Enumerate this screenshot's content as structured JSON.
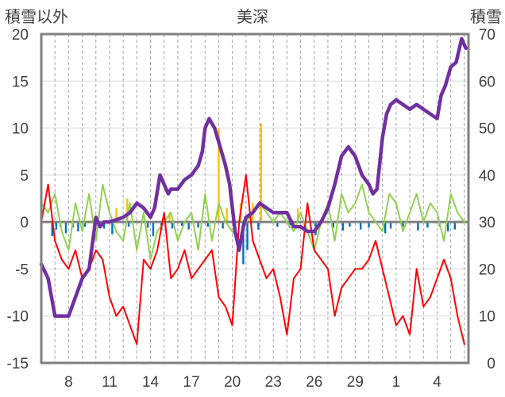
{
  "chart_data": {
    "type": "line",
    "title": "美深",
    "left_axis_label": "積雪以外",
    "right_axis_label": "積雪",
    "left_ylim": [
      -15,
      20
    ],
    "left_ticks": [
      20,
      15,
      10,
      5,
      0,
      -5,
      -10,
      -15
    ],
    "right_ylim": [
      0,
      70
    ],
    "right_ticks": [
      70,
      60,
      50,
      40,
      30,
      20,
      10,
      0
    ],
    "x_tick_labels": [
      "8",
      "11",
      "14",
      "17",
      "20",
      "23",
      "26",
      "29",
      "1",
      "4"
    ],
    "grid": true,
    "colors": {
      "snow_depth": "#7030a0",
      "temperature": "#ff0000",
      "snow_change": "#92d050",
      "snowfall": "#ffc000",
      "precip": "#0070c0",
      "zero_line": "#808080",
      "frame": "#808080"
    },
    "series": [
      {
        "key": "snow_depth",
        "axis": "right",
        "x": [
          6.0,
          6.5,
          7.0,
          7.5,
          8.0,
          8.5,
          9.0,
          9.5,
          10.0,
          10.3,
          10.6,
          11.0,
          11.5,
          12.0,
          12.5,
          13.0,
          13.5,
          14.0,
          14.3,
          14.7,
          15.0,
          15.3,
          15.5,
          16.0,
          16.5,
          17.0,
          17.5,
          17.8,
          18.0,
          18.3,
          18.7,
          19.0,
          19.5,
          19.8,
          20.2,
          20.5,
          20.8,
          21.0,
          21.5,
          22.0,
          22.5,
          23.0,
          23.5,
          24.0,
          24.5,
          25.0,
          25.5,
          26.0,
          26.5,
          27.0,
          27.5,
          28.0,
          28.5,
          29.0,
          29.5,
          30.0,
          30.3,
          30.6,
          31.0,
          31.3,
          31.6,
          32.0,
          32.5,
          33.0,
          33.5,
          34.0,
          34.5,
          35.0,
          35.3,
          35.6,
          36.0,
          36.4,
          36.8,
          37.1
        ],
        "values": [
          21,
          18,
          10,
          10,
          10,
          14,
          18,
          20,
          31,
          29,
          30,
          30,
          30.5,
          31,
          32,
          34,
          33,
          31,
          33,
          40,
          38,
          36,
          37,
          37,
          39,
          40,
          42,
          45,
          50,
          52,
          50,
          47,
          42,
          38,
          28,
          24,
          29,
          31,
          32,
          34,
          33,
          32,
          32,
          32,
          29,
          29,
          28,
          28,
          30,
          33,
          38,
          44,
          46,
          44,
          40,
          38,
          36,
          37,
          48,
          53,
          55,
          56,
          55,
          54,
          55,
          54,
          53,
          52,
          57,
          59,
          63,
          64,
          69,
          67
        ]
      },
      {
        "key": "temperature",
        "axis": "left",
        "x": [
          6.0,
          6.5,
          7.0,
          7.5,
          8.0,
          8.5,
          9.0,
          9.5,
          10.0,
          10.5,
          11.0,
          11.5,
          12.0,
          12.5,
          13.0,
          13.5,
          14.0,
          14.5,
          15.0,
          15.5,
          16.0,
          16.5,
          17.0,
          17.5,
          18.0,
          18.5,
          19.0,
          19.5,
          20.0,
          20.5,
          21.0,
          21.5,
          22.0,
          22.5,
          23.0,
          23.5,
          24.0,
          24.5,
          25.0,
          25.5,
          26.0,
          26.5,
          27.0,
          27.5,
          28.0,
          28.5,
          29.0,
          29.5,
          30.0,
          30.5,
          31.0,
          31.5,
          32.0,
          32.5,
          33.0,
          33.5,
          34.0,
          34.5,
          35.0,
          35.5,
          36.0,
          36.5,
          37.0
        ],
        "values": [
          0,
          4,
          -2,
          -4,
          -5,
          -3,
          -6,
          -5,
          -3,
          -4,
          -8,
          -10,
          -9,
          -11,
          -13,
          -4,
          -5,
          -3,
          1,
          -6,
          -5,
          -3,
          -6,
          -5,
          -4,
          -3,
          -8,
          -9,
          -11,
          0,
          5,
          -2,
          -4,
          -6,
          -5,
          -8,
          -12,
          -6,
          -5,
          2,
          -3,
          -4,
          -5,
          -10,
          -7,
          -6,
          -5,
          -5,
          -4,
          -2,
          -5,
          -8,
          -11,
          -10,
          -12,
          -5,
          -9,
          -8,
          -6,
          -4,
          -6,
          -10,
          -13
        ]
      },
      {
        "key": "snow_change",
        "axis": "left",
        "x": [
          6.0,
          6.5,
          7.0,
          7.5,
          8.0,
          8.5,
          9.0,
          9.5,
          10.0,
          10.5,
          11.0,
          11.5,
          12.0,
          12.5,
          13.0,
          13.5,
          14.0,
          14.5,
          15.0,
          15.5,
          16.0,
          16.5,
          17.0,
          17.5,
          18.0,
          18.5,
          19.0,
          19.5,
          20.0,
          20.5,
          21.0,
          21.5,
          22.0,
          22.5,
          23.0,
          23.5,
          24.0,
          24.5,
          25.0,
          25.5,
          26.0,
          26.5,
          27.0,
          27.5,
          28.0,
          28.5,
          29.0,
          29.5,
          30.0,
          30.5,
          31.0,
          31.5,
          32.0,
          32.5,
          33.0,
          33.5,
          34.0,
          34.5,
          35.0,
          35.5,
          36.0,
          36.5,
          37.0
        ],
        "values": [
          2,
          1,
          3,
          -1,
          -3,
          2,
          -1,
          3,
          -2,
          4,
          1,
          -1,
          -2,
          2,
          -3,
          1,
          -4,
          -1,
          0,
          1,
          -2,
          0,
          1,
          -3,
          3,
          -2,
          2,
          0,
          -1,
          -2,
          0,
          1,
          2,
          1,
          0,
          1,
          0,
          -1,
          1,
          -1,
          -3,
          0,
          2,
          -2,
          3,
          1,
          2,
          4,
          1,
          0,
          -1,
          3,
          2,
          -1,
          1,
          3,
          0,
          2,
          1,
          -2,
          3,
          1,
          0
        ]
      },
      {
        "key": "snowfall",
        "axis": "left",
        "x": [
          11.5,
          12.3,
          15.4,
          19.0,
          19.6,
          20.6,
          21.5,
          22.1,
          24.8
        ],
        "values": [
          1.5,
          2.5,
          1.0,
          10.0,
          1.5,
          2.0,
          2.0,
          10.5,
          1.5
        ]
      },
      {
        "key": "precip",
        "axis": "left",
        "x": [
          6.8,
          7.1,
          7.4,
          7.8,
          8.3,
          8.7,
          9.2,
          10.6,
          11.2,
          12.4,
          13.8,
          14.2,
          14.8,
          15.6,
          16.3,
          16.8,
          17.5,
          18.2,
          19.3,
          20.8,
          21.1,
          21.9,
          23.3,
          24.2,
          25.3,
          26.1,
          27.4,
          28.1,
          28.6,
          29.4,
          30.0,
          31.2,
          31.6,
          32.5,
          33.6,
          34.3,
          35.2,
          35.8,
          36.3
        ],
        "values": [
          -1.5,
          -0.8,
          -0.5,
          -1.2,
          -0.6,
          -1.0,
          -0.5,
          -0.7,
          -1.3,
          -0.5,
          -0.6,
          -1.5,
          -0.9,
          -0.7,
          -0.4,
          -0.8,
          -0.6,
          -0.5,
          -0.7,
          -4.5,
          -3.0,
          -0.8,
          -0.5,
          -0.6,
          -0.7,
          -1.4,
          -0.6,
          -0.9,
          -0.5,
          -0.8,
          -0.6,
          -1.2,
          -0.7,
          -0.5,
          -0.9,
          -0.6,
          -0.5,
          -1.0,
          -0.8
        ]
      }
    ]
  }
}
